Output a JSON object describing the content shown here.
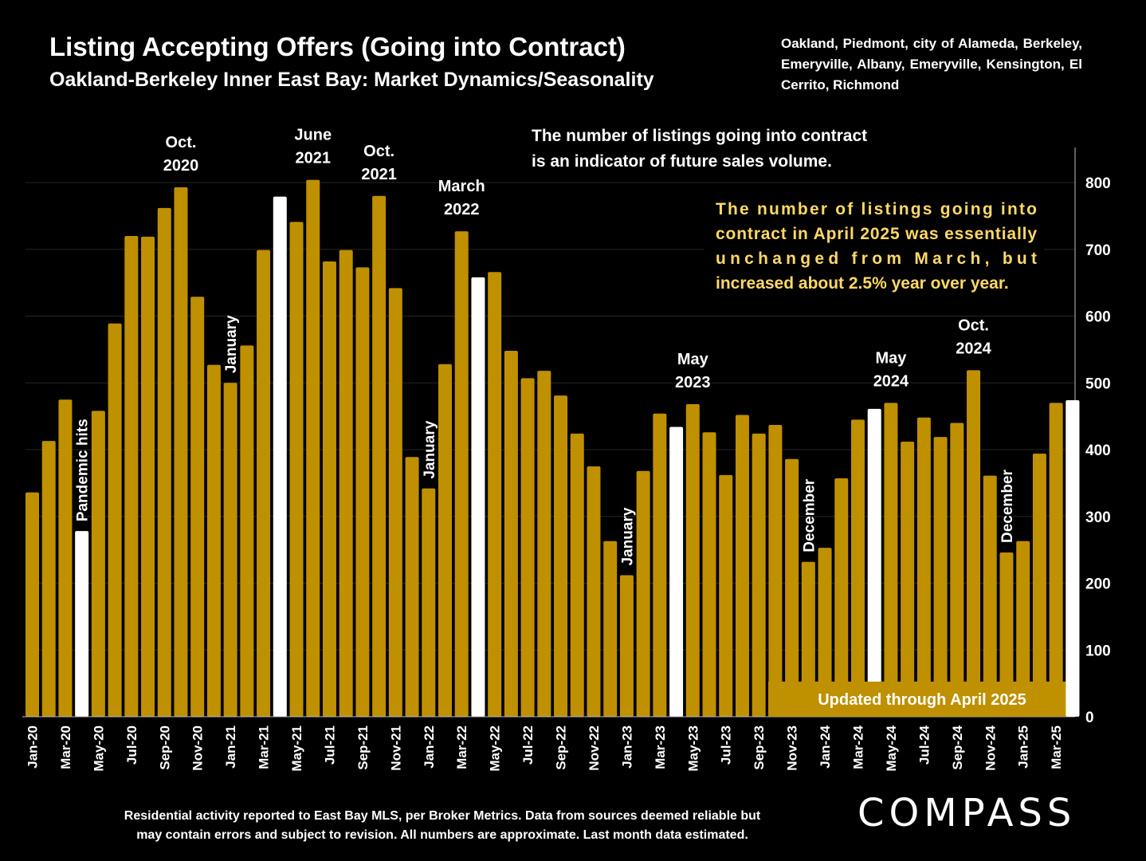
{
  "header": {
    "title": "Listing Accepting Offers (Going into Contract)",
    "subtitle": "Oakland-Berkeley Inner East Bay: Market Dynamics/Seasonality",
    "areas": "Oakland, Piedmont, city of Alameda, Berkeley, Emeryville, Albany, Emeryville, Kensington, El Cerrito, Richmond"
  },
  "footer": {
    "note_line1": "Residential activity reported to East Bay MLS, per Broker Metrics. Data from sources deemed reliable but",
    "note_line2": "may contain errors and subject to revision. All numbers are approximate. Last month data estimated.",
    "logo": "COMPASS"
  },
  "colors": {
    "bar": "#BF9000",
    "highlight": "#FFFFFF",
    "background": "#000000",
    "callout_text": "#FFD966"
  },
  "chart_data": {
    "type": "bar",
    "title": "Listing Accepting Offers (Going into Contract)",
    "ylim": [
      0,
      800
    ],
    "yticks": [
      0,
      100,
      200,
      300,
      400,
      500,
      600,
      700,
      800
    ],
    "y_axis_position": "right",
    "grid": true,
    "categories": [
      "Jan-20",
      "Feb-20",
      "Mar-20",
      "Apr-20",
      "May-20",
      "Jun-20",
      "Jul-20",
      "Aug-20",
      "Sep-20",
      "Oct-20",
      "Nov-20",
      "Dec-20",
      "Jan-21",
      "Feb-21",
      "Mar-21",
      "Apr-21",
      "May-21",
      "Jun-21",
      "Jul-21",
      "Aug-21",
      "Sep-21",
      "Oct-21",
      "Nov-21",
      "Dec-21",
      "Jan-22",
      "Feb-22",
      "Mar-22",
      "Apr-22",
      "May-22",
      "Jun-22",
      "Jul-22",
      "Aug-22",
      "Sep-22",
      "Oct-22",
      "Nov-22",
      "Dec-22",
      "Jan-23",
      "Feb-23",
      "Mar-23",
      "Apr-23",
      "May-23",
      "Jun-23",
      "Jul-23",
      "Aug-23",
      "Sep-23",
      "Oct-23",
      "Nov-23",
      "Dec-23",
      "Jan-24",
      "Feb-24",
      "Mar-24",
      "Apr-24",
      "May-24",
      "Jun-24",
      "Jul-24",
      "Aug-24",
      "Sep-24",
      "Oct-24",
      "Nov-24",
      "Dec-24",
      "Jan-25",
      "Feb-25",
      "Mar-25",
      "Apr-25"
    ],
    "tick_labels": [
      "Jan-20",
      "Mar-20",
      "May-20",
      "Jul-20",
      "Sep-20",
      "Nov-20",
      "Jan-21",
      "Mar-21",
      "May-21",
      "Jul-21",
      "Sep-21",
      "Nov-21",
      "Jan-22",
      "Mar-22",
      "May-22",
      "Jul-22",
      "Sep-22",
      "Nov-22",
      "Jan-23",
      "Mar-23",
      "May-23",
      "Jul-23",
      "Sep-23",
      "Nov-23",
      "Jan-24",
      "Mar-24",
      "May-24",
      "Jul-24",
      "Sep-24",
      "Nov-24",
      "Jan-25",
      "Mar-25"
    ],
    "values": [
      336,
      413,
      475,
      278,
      458,
      589,
      720,
      719,
      762,
      793,
      629,
      527,
      500,
      556,
      699,
      779,
      741,
      804,
      682,
      699,
      673,
      780,
      642,
      389,
      342,
      528,
      727,
      658,
      666,
      548,
      507,
      518,
      481,
      424,
      375,
      263,
      212,
      368,
      454,
      434,
      468,
      426,
      362,
      452,
      424,
      437,
      386,
      232,
      253,
      357,
      445,
      461,
      470,
      412,
      448,
      419,
      440,
      519,
      361,
      246,
      263,
      394,
      470,
      474
    ],
    "highlighted": [
      "Apr-20",
      "Apr-21",
      "Apr-22",
      "Apr-23",
      "Apr-24",
      "Apr-25"
    ],
    "annotations": [
      {
        "category": "Apr-20",
        "text": "Pandemic hits",
        "rotated": true
      },
      {
        "category": "Oct-20",
        "line1": "Oct.",
        "line2": "2020"
      },
      {
        "category": "Jan-21",
        "text": "January",
        "rotated": true
      },
      {
        "category": "Jun-21",
        "line1": "June",
        "line2": "2021"
      },
      {
        "category": "Oct-21",
        "line1": "Oct.",
        "line2": "2021"
      },
      {
        "category": "Jan-22",
        "text": "January",
        "rotated": true
      },
      {
        "category": "Mar-22",
        "line1": "March",
        "line2": "2022"
      },
      {
        "category": "Jan-23",
        "text": "January",
        "rotated": true
      },
      {
        "category": "May-23",
        "line1": "May",
        "line2": "2023"
      },
      {
        "category": "Dec-23",
        "text": "December",
        "rotated": true
      },
      {
        "category": "May-24",
        "line1": "May",
        "line2": "2024"
      },
      {
        "category": "Oct-24",
        "line1": "Oct.",
        "line2": "2024"
      },
      {
        "category": "Dec-24",
        "text": "December",
        "rotated": true
      }
    ],
    "note_top": [
      "The number of listings going into contract",
      "is an indicator of future sales volume."
    ],
    "callout": [
      "The number of listings going into",
      "contract in April 2025 was essentially",
      "unchanged from March, but",
      "increased about 2.5% year over year."
    ],
    "badge": "Updated through April 2025"
  }
}
